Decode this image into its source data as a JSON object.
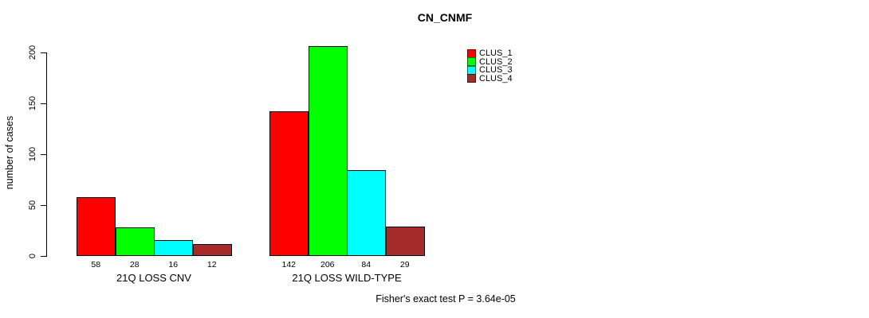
{
  "title": "CN_CNMF",
  "ylabel": "number of cases",
  "annotation": "Fisher's exact test P = 3.64e-05",
  "legend": {
    "items": [
      {
        "label": "CLUS_1",
        "color": "#FF0000"
      },
      {
        "label": "CLUS_2",
        "color": "#00FF00"
      },
      {
        "label": "CLUS_3",
        "color": "#00FFFF"
      },
      {
        "label": "CLUS_4",
        "color": "#A52A2A"
      }
    ]
  },
  "chart_data": {
    "type": "bar",
    "title": "CN_CNMF",
    "xlabel": "",
    "ylabel": "number of cases",
    "ylim": [
      0,
      200
    ],
    "yticks": [
      0,
      50,
      100,
      150,
      200
    ],
    "grid": false,
    "legend_position": "top-right",
    "categories": [
      "21Q LOSS CNV",
      "21Q LOSS WILD-TYPE"
    ],
    "series": [
      {
        "name": "CLUS_1",
        "color": "#FF0000",
        "values": [
          58,
          142
        ]
      },
      {
        "name": "CLUS_2",
        "color": "#00FF00",
        "values": [
          28,
          206
        ]
      },
      {
        "name": "CLUS_3",
        "color": "#00FFFF",
        "values": [
          16,
          84
        ]
      },
      {
        "name": "CLUS_4",
        "color": "#A52A2A",
        "values": [
          12,
          29
        ]
      }
    ],
    "bar_value_labels": {
      "21Q LOSS CNV": [
        58,
        28,
        16,
        12
      ],
      "21Q LOSS WILD-TYPE": [
        142,
        206,
        84,
        29
      ]
    },
    "annotation": "Fisher's exact test P = 3.64e-05"
  }
}
